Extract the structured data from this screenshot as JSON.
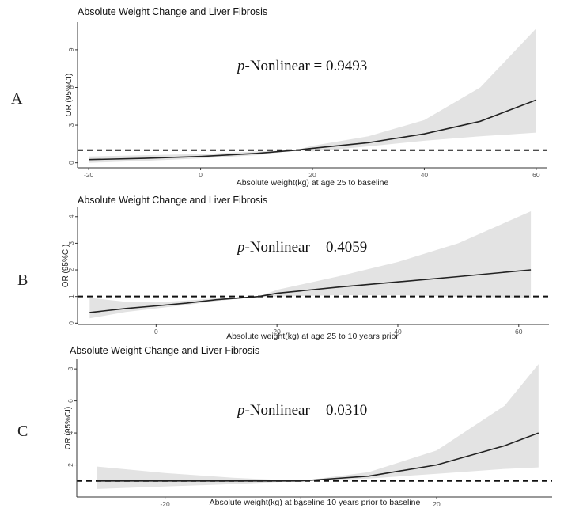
{
  "chart_data": [
    {
      "type": "line",
      "panel": "A",
      "title": "Absolute Weight Change and Liver Fibrosis",
      "xlabel": "Absolute weight(kg) at age 25 to baseline",
      "ylabel": "OR (95%CI)",
      "annotation": {
        "italic": "p",
        "text": "-Nonlinear = 0.9493"
      },
      "xlim": [
        -22,
        62
      ],
      "ylim": [
        -0.4,
        11.2
      ],
      "xticks": [
        -20,
        0,
        20,
        40,
        60
      ],
      "yticks": [
        0,
        3,
        6,
        9
      ],
      "reference_line": 1,
      "series": [
        {
          "x": [
            -20,
            -10,
            0,
            10,
            17,
            20,
            30,
            40,
            50,
            60
          ],
          "y": [
            0.25,
            0.35,
            0.5,
            0.75,
            1.0,
            1.15,
            1.6,
            2.3,
            3.3,
            5.0
          ],
          "lower": [
            0.0,
            0.15,
            0.35,
            0.6,
            1.0,
            0.9,
            1.3,
            1.75,
            2.1,
            2.4
          ],
          "upper": [
            0.5,
            0.6,
            0.7,
            0.9,
            1.0,
            1.35,
            2.1,
            3.4,
            6.0,
            10.7
          ]
        }
      ]
    },
    {
      "type": "line",
      "panel": "B",
      "title": "Absolute Weight Change and Liver Fibrosis",
      "xlabel": "Absolute weight(kg) at age 25 to 10 years prior",
      "ylabel": "OR (95%CI)",
      "annotation": {
        "italic": "p",
        "text": "-Nonlinear = 0.4059"
      },
      "xlim": [
        -13,
        65
      ],
      "ylim": [
        -0.05,
        4.35
      ],
      "xticks": [
        0,
        20,
        40,
        60
      ],
      "yticks": [
        0,
        1,
        2,
        3,
        4
      ],
      "reference_line": 1,
      "series": [
        {
          "x": [
            -11,
            -5,
            0,
            5,
            10,
            17,
            20,
            30,
            40,
            50,
            62
          ],
          "y": [
            0.4,
            0.55,
            0.65,
            0.75,
            0.88,
            1.0,
            1.12,
            1.35,
            1.55,
            1.75,
            2.0
          ],
          "lower": [
            0.18,
            0.42,
            0.55,
            0.68,
            0.83,
            1.0,
            1.0,
            1.05,
            1.05,
            1.0,
            0.95
          ],
          "upper": [
            0.95,
            0.8,
            0.78,
            0.85,
            0.93,
            1.0,
            1.25,
            1.75,
            2.3,
            3.0,
            4.2
          ]
        }
      ]
    },
    {
      "type": "line",
      "panel": "C",
      "title": "Absolute Weight Change and Liver Fibrosis",
      "xlabel": "Absolute weight(kg) at baseline 10 years prior to baseline",
      "ylabel": "OR (95%CI)",
      "annotation": {
        "italic": "p",
        "text": "-Nonlinear = 0.0310"
      },
      "xlim": [
        -33,
        37
      ],
      "ylim": [
        0,
        8.6
      ],
      "xticks": [
        -20,
        0,
        20
      ],
      "yticks": [
        2,
        4,
        6,
        8
      ],
      "reference_line": 1,
      "series": [
        {
          "x": [
            -30,
            -20,
            -10,
            0,
            10,
            20,
            30,
            35
          ],
          "y": [
            1.0,
            1.0,
            1.0,
            1.0,
            1.3,
            2.0,
            3.2,
            4.0
          ],
          "lower": [
            0.5,
            0.65,
            0.8,
            1.0,
            1.15,
            1.45,
            1.75,
            1.85
          ],
          "upper": [
            1.9,
            1.5,
            1.2,
            1.0,
            1.55,
            2.9,
            5.7,
            8.3
          ]
        }
      ]
    }
  ]
}
